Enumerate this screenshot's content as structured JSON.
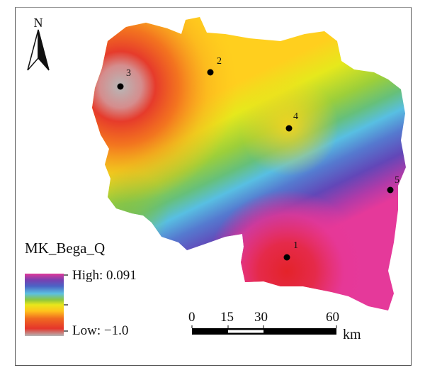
{
  "north_arrow": {
    "label": "N",
    "icon": "north-arrow-icon"
  },
  "legend": {
    "title": "MK_Bega_Q",
    "high_label": "High: 0.091",
    "low_label": "Low: −1.0",
    "colors_low_to_high": [
      "#b5b5b5",
      "#e5352b",
      "#f06a20",
      "#ffc21c",
      "#e9e71b",
      "#8cc63f",
      "#5cc0e0",
      "#4b62c5",
      "#7a3fb0",
      "#e0399a"
    ]
  },
  "stations": [
    {
      "id": "1",
      "label": "1"
    },
    {
      "id": "2",
      "label": "2"
    },
    {
      "id": "3",
      "label": "3"
    },
    {
      "id": "4",
      "label": "4"
    },
    {
      "id": "5",
      "label": "5"
    }
  ],
  "scale_bar": {
    "ticks": [
      "0",
      "15",
      "30",
      "60"
    ],
    "unit": "km"
  }
}
